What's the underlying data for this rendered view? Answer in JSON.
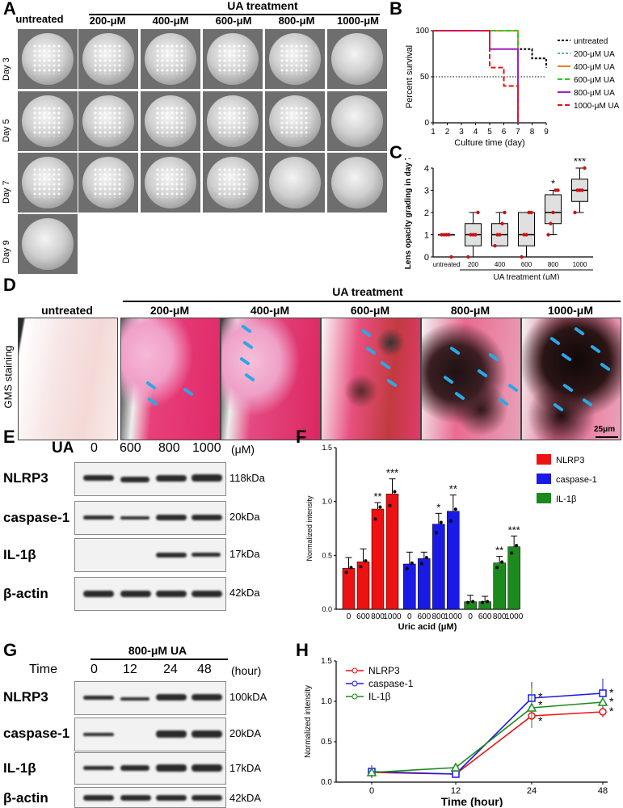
{
  "panels": {
    "A": "A",
    "B": "B",
    "C": "C",
    "D": "D",
    "E": "E",
    "F": "F",
    "G": "G",
    "H": "H"
  },
  "panelA": {
    "ua_treatment": "UA  treatment",
    "col_untreated": "untreated",
    "cols": [
      "200-μM",
      "400-μM",
      "600-μM",
      "800-μM",
      "1000-μM"
    ],
    "days": [
      "Day 3",
      "Day 5",
      "Day 7",
      "Day 9"
    ]
  },
  "panelD": {
    "ua_treatment": "UA treatment",
    "untreated": "untreated",
    "cols": [
      "200-μM",
      "400-μM",
      "600-μM",
      "800-μM",
      "1000-μM"
    ],
    "side": "GMS staining",
    "scale": "25μm"
  },
  "panelE": {
    "ua": "UA",
    "conc": [
      "0",
      "600",
      "800",
      "1000"
    ],
    "unit": "(μM)",
    "rows": [
      "NLRP3",
      "caspase-1",
      "IL-1β",
      "β-actin"
    ],
    "kda": [
      "118kDa",
      "20kDa",
      "17kDa",
      "42kDa"
    ]
  },
  "panelG": {
    "header": "800-μM UA",
    "time": "Time",
    "times": [
      "0",
      "12",
      "24",
      "48"
    ],
    "unit": "(hour)",
    "rows": [
      "NLRP3",
      "caspase-1",
      "IL-1β",
      "β-actin"
    ],
    "kda": [
      "100kDA",
      "20kDA",
      "17kDA",
      "42kDA"
    ]
  },
  "chart_data": [
    {
      "panel": "B",
      "type": "line",
      "xlabel": "Culture time (day)",
      "ylabel": "Percent survival",
      "xlim": [
        1,
        9
      ],
      "ylim": [
        0,
        100
      ],
      "xticks": [
        "1",
        "2",
        "3",
        "4",
        "5",
        "6",
        "7",
        "8",
        "9"
      ],
      "yticks": [
        "0",
        "50",
        "100"
      ],
      "series": [
        {
          "name": "untreated",
          "color": "#000000",
          "dash": "3,2",
          "x": [
            1,
            7,
            7,
            8,
            8,
            9,
            9
          ],
          "y": [
            100,
            100,
            80,
            80,
            70,
            70,
            60
          ]
        },
        {
          "name": "200-μM UA",
          "color": "#5aa8d8",
          "dash": "3,2",
          "x": [
            1,
            7,
            7
          ],
          "y": [
            100,
            100,
            0
          ]
        },
        {
          "name": "400-μM UA",
          "color": "#f08020",
          "dash": "",
          "x": [
            1,
            7,
            7
          ],
          "y": [
            100,
            100,
            0
          ]
        },
        {
          "name": "600-μM UA",
          "color": "#22cc22",
          "dash": "6,3",
          "x": [
            1,
            7,
            7
          ],
          "y": [
            100,
            100,
            0
          ]
        },
        {
          "name": "800-μM UA",
          "color": "#a020c0",
          "dash": "",
          "x": [
            1,
            5,
            5,
            7,
            7
          ],
          "y": [
            100,
            100,
            80,
            80,
            0
          ]
        },
        {
          "name": "1000-μM UA",
          "color": "#ee1111",
          "dash": "6,3",
          "x": [
            1,
            5,
            5,
            6,
            6,
            7,
            7
          ],
          "y": [
            100,
            100,
            60,
            60,
            40,
            40,
            0
          ]
        }
      ]
    },
    {
      "panel": "C",
      "type": "box",
      "ylabel": "Lens opacity grading in day 7",
      "xlabel": "UA treatment (μM)",
      "categories": [
        "untreated",
        "200",
        "400",
        "600",
        "800",
        "1000"
      ],
      "ylim": [
        0,
        4
      ],
      "yticks": [
        "0",
        "1",
        "2",
        "3",
        "4"
      ],
      "boxes": [
        {
          "min": 1,
          "q1": 1,
          "med": 1,
          "q3": 1,
          "max": 1,
          "points": [
            1,
            1,
            1,
            1,
            0
          ]
        },
        {
          "min": 0,
          "q1": 0.5,
          "med": 1,
          "q3": 1.5,
          "max": 2,
          "points": [
            0,
            1,
            1,
            1,
            2
          ]
        },
        {
          "min": 0.5,
          "q1": 0.5,
          "med": 1,
          "q3": 1.5,
          "max": 2,
          "points": [
            0.5,
            1,
            1,
            1.5,
            2
          ]
        },
        {
          "min": 0,
          "q1": 0.5,
          "med": 1,
          "q3": 2,
          "max": 2,
          "points": [
            0,
            1,
            1,
            2,
            2
          ]
        },
        {
          "min": 1,
          "q1": 1.5,
          "med": 2,
          "q3": 2.8,
          "max": 3,
          "points": [
            1,
            1.5,
            2,
            3,
            3
          ]
        },
        {
          "min": 2,
          "q1": 2.5,
          "med": 3,
          "q3": 3.5,
          "max": 4,
          "points": [
            2,
            3,
            3,
            3,
            4
          ]
        }
      ],
      "significance": [
        "",
        "",
        "",
        "",
        "*",
        "***"
      ]
    },
    {
      "panel": "F",
      "type": "bar",
      "ylabel": "Normalized intensity",
      "xlabel": "Uric acid (μM)",
      "categories": [
        "0",
        "600",
        "800",
        "1000"
      ],
      "ylim": [
        0,
        1.5
      ],
      "yticks": [
        "0.0",
        "0.5",
        "1.0",
        "1.5"
      ],
      "series": [
        {
          "name": "NLRP3",
          "color": "#ee1111",
          "values": [
            0.38,
            0.44,
            0.93,
            1.07
          ],
          "err": [
            0.1,
            0.12,
            0.06,
            0.14
          ],
          "sig": [
            "",
            "",
            "**",
            "***"
          ]
        },
        {
          "name": "caspase-1",
          "color": "#1a1ae6",
          "values": [
            0.42,
            0.47,
            0.79,
            0.91
          ],
          "err": [
            0.11,
            0.06,
            0.1,
            0.15
          ],
          "sig": [
            "",
            "",
            "*",
            "**"
          ]
        },
        {
          "name": "IL-1β",
          "color": "#1d8a1d",
          "values": [
            0.07,
            0.07,
            0.43,
            0.58
          ],
          "err": [
            0.06,
            0.05,
            0.06,
            0.1
          ],
          "sig": [
            "",
            "",
            "**",
            "***"
          ]
        }
      ]
    },
    {
      "panel": "H",
      "type": "line",
      "ylabel": "Normalized intensity",
      "xlabel": "Time (hour)",
      "categories": [
        "0",
        "12",
        "24",
        "48"
      ],
      "ylim": [
        0,
        1.5
      ],
      "yticks": [
        "0.0",
        "0.5",
        "1.0",
        "1.5"
      ],
      "series": [
        {
          "name": "NLRP3",
          "color": "#ee1111",
          "marker": "circle",
          "values": [
            0.12,
            0.1,
            0.82,
            0.87
          ],
          "err": [
            0.05,
            0.02,
            0.1,
            0.07
          ]
        },
        {
          "name": "caspase-1",
          "color": "#1a1ae6",
          "marker": "square",
          "values": [
            0.13,
            0.1,
            1.04,
            1.1
          ],
          "err": [
            0.08,
            0.02,
            0.2,
            0.18
          ]
        },
        {
          "name": "IL-1β",
          "color": "#1d8a1d",
          "marker": "triangle",
          "values": [
            0.12,
            0.18,
            0.92,
            0.99
          ],
          "err": [
            0.04,
            0.02,
            0.25,
            0.05
          ]
        }
      ],
      "significance": [
        "",
        "",
        "*",
        "*"
      ]
    }
  ]
}
